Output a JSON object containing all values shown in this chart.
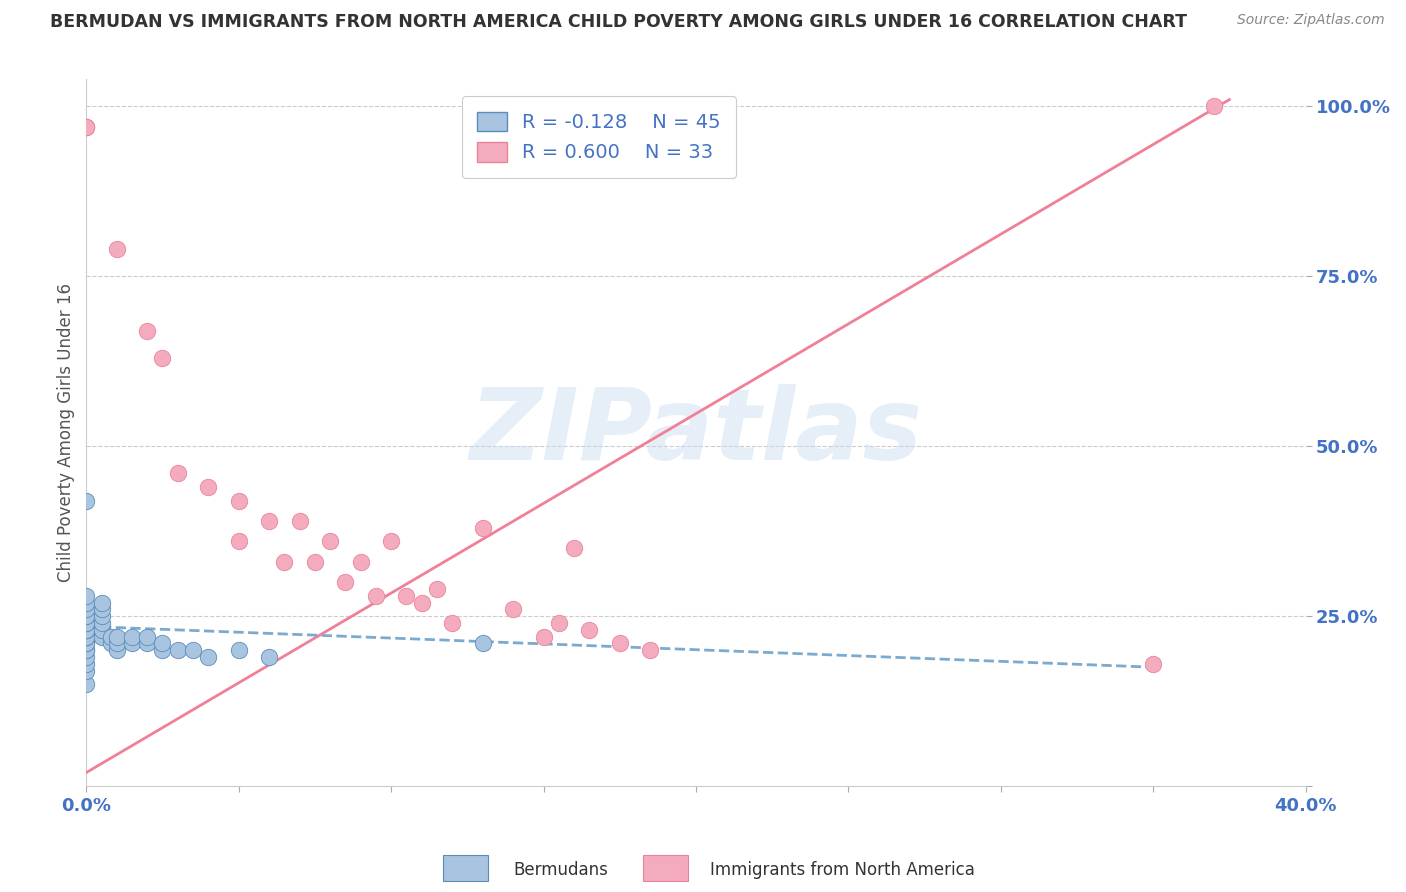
{
  "title": "BERMUDAN VS IMMIGRANTS FROM NORTH AMERICA CHILD POVERTY AMONG GIRLS UNDER 16 CORRELATION CHART",
  "source": "Source: ZipAtlas.com",
  "ylabel": "Child Poverty Among Girls Under 16",
  "xlim": [
    0.0,
    0.4
  ],
  "ylim": [
    0.0,
    1.04
  ],
  "xticks": [
    0.0,
    0.05,
    0.1,
    0.15,
    0.2,
    0.25,
    0.3,
    0.35,
    0.4
  ],
  "yticks": [
    0.0,
    0.25,
    0.5,
    0.75,
    1.0
  ],
  "blue_R": -0.128,
  "blue_N": 45,
  "pink_R": 0.6,
  "pink_N": 33,
  "blue_label": "Bermudans",
  "pink_label": "Immigrants from North America",
  "blue_color": "#A8C4E0",
  "pink_color": "#F4ABBE",
  "blue_edge_color": "#5B8DB8",
  "pink_edge_color": "#E8849A",
  "blue_line_color": "#7AAAD0",
  "pink_line_color": "#F08098",
  "watermark": "ZIPatlas",
  "background_color": "#FFFFFF",
  "grid_color": "#CCCCCC",
  "title_color": "#333333",
  "axis_label_color": "#555555",
  "tick_label_color": "#4472C4",
  "legend_R_color": "#4472C4",
  "blue_scatter_x": [
    0.0,
    0.0,
    0.0,
    0.0,
    0.0,
    0.0,
    0.0,
    0.0,
    0.0,
    0.0,
    0.0,
    0.0,
    0.0,
    0.0,
    0.0,
    0.0,
    0.0,
    0.0,
    0.0,
    0.0,
    0.0,
    0.0,
    0.005,
    0.005,
    0.005,
    0.005,
    0.005,
    0.005,
    0.008,
    0.008,
    0.01,
    0.01,
    0.01,
    0.015,
    0.015,
    0.02,
    0.02,
    0.025,
    0.025,
    0.03,
    0.035,
    0.04,
    0.05,
    0.06,
    0.13
  ],
  "blue_scatter_y": [
    0.15,
    0.17,
    0.18,
    0.19,
    0.2,
    0.2,
    0.21,
    0.21,
    0.22,
    0.22,
    0.22,
    0.23,
    0.23,
    0.23,
    0.24,
    0.24,
    0.25,
    0.25,
    0.26,
    0.27,
    0.28,
    0.42,
    0.22,
    0.23,
    0.24,
    0.25,
    0.26,
    0.27,
    0.21,
    0.22,
    0.2,
    0.21,
    0.22,
    0.21,
    0.22,
    0.21,
    0.22,
    0.2,
    0.21,
    0.2,
    0.2,
    0.19,
    0.2,
    0.19,
    0.21
  ],
  "pink_scatter_x": [
    0.0,
    0.0,
    0.0,
    0.01,
    0.02,
    0.025,
    0.03,
    0.04,
    0.05,
    0.05,
    0.06,
    0.065,
    0.07,
    0.075,
    0.08,
    0.085,
    0.09,
    0.095,
    0.1,
    0.105,
    0.11,
    0.115,
    0.12,
    0.13,
    0.14,
    0.15,
    0.155,
    0.16,
    0.165,
    0.175,
    0.185,
    0.35,
    0.37
  ],
  "pink_scatter_y": [
    0.97,
    0.97,
    0.97,
    0.79,
    0.67,
    0.63,
    0.46,
    0.44,
    0.42,
    0.36,
    0.39,
    0.33,
    0.39,
    0.33,
    0.36,
    0.3,
    0.33,
    0.28,
    0.36,
    0.28,
    0.27,
    0.29,
    0.24,
    0.38,
    0.26,
    0.22,
    0.24,
    0.35,
    0.23,
    0.21,
    0.2,
    0.18,
    1.0
  ],
  "blue_trend_x": [
    0.0,
    0.35
  ],
  "blue_trend_y": [
    0.235,
    0.175
  ],
  "pink_trend_x": [
    0.0,
    0.375
  ],
  "pink_trend_y": [
    0.02,
    1.01
  ]
}
